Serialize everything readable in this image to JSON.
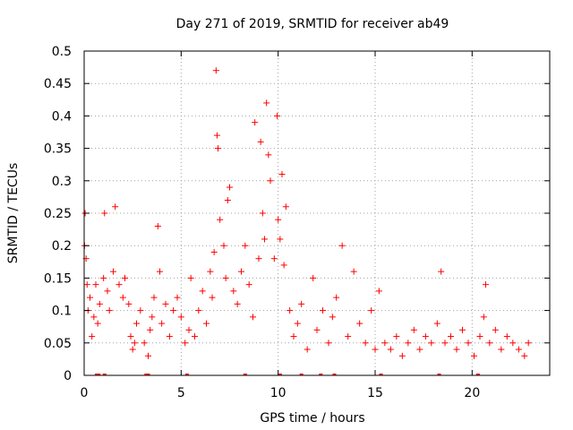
{
  "chart_data": {
    "type": "scatter",
    "title": "Day 271 of 2019, SRMTID for receiver ab49",
    "xlabel": "GPS time / hours",
    "ylabel": "SRMTID / TECUs",
    "xlim": [
      0,
      24
    ],
    "ylim": [
      0,
      0.5
    ],
    "xticks": [
      0,
      5,
      10,
      15,
      20
    ],
    "xtick_labels": [
      "0",
      "5",
      "10",
      "15",
      "20"
    ],
    "yticks": [
      0,
      0.05,
      0.1,
      0.15,
      0.2,
      0.25,
      0.3,
      0.35,
      0.4,
      0.45,
      0.5
    ],
    "ytick_labels": [
      "0",
      "0.05",
      "0.1",
      "0.15",
      "0.2",
      "0.25",
      "0.3",
      "0.35",
      "0.4",
      "0.45",
      "0.5"
    ],
    "grid": true,
    "marker": "+",
    "color": "#ff0000",
    "series": [
      {
        "name": "SRMTID",
        "x": [
          0.02,
          0.05,
          0.1,
          0.15,
          0.2,
          0.3,
          0.4,
          0.5,
          0.6,
          0.7,
          0.8,
          1.0,
          1.05,
          1.2,
          1.3,
          1.5,
          1.6,
          1.8,
          2.0,
          2.1,
          2.3,
          2.4,
          2.5,
          2.6,
          2.7,
          2.9,
          3.1,
          3.3,
          3.4,
          3.5,
          3.6,
          3.8,
          3.9,
          4.0,
          4.2,
          4.4,
          4.6,
          4.8,
          5.0,
          5.2,
          5.4,
          5.5,
          5.7,
          5.9,
          6.1,
          6.3,
          6.5,
          6.6,
          6.7,
          6.8,
          6.85,
          6.9,
          7.0,
          7.2,
          7.3,
          7.4,
          7.5,
          7.7,
          7.9,
          8.1,
          8.3,
          8.5,
          8.7,
          8.8,
          9.0,
          9.1,
          9.2,
          9.3,
          9.4,
          9.5,
          9.6,
          9.8,
          9.95,
          10.0,
          10.1,
          10.2,
          10.3,
          10.4,
          10.6,
          10.8,
          11.0,
          11.2,
          11.5,
          11.8,
          12.0,
          12.3,
          12.6,
          12.8,
          13.0,
          13.3,
          13.6,
          13.9,
          14.2,
          14.5,
          14.8,
          15.0,
          15.2,
          15.5,
          15.8,
          16.1,
          16.4,
          16.7,
          17.0,
          17.3,
          17.6,
          17.9,
          18.2,
          18.4,
          18.6,
          18.9,
          19.2,
          19.5,
          19.8,
          20.1,
          20.4,
          20.6,
          20.7,
          20.9,
          21.2,
          21.5,
          21.8,
          22.1,
          22.4,
          22.7,
          22.9
        ],
        "y": [
          0.2,
          0.25,
          0.18,
          0.14,
          0.1,
          0.12,
          0.06,
          0.09,
          0.14,
          0.08,
          0.11,
          0.15,
          0.25,
          0.13,
          0.1,
          0.16,
          0.26,
          0.14,
          0.12,
          0.15,
          0.11,
          0.06,
          0.04,
          0.05,
          0.08,
          0.1,
          0.05,
          0.03,
          0.07,
          0.09,
          0.12,
          0.23,
          0.16,
          0.08,
          0.11,
          0.06,
          0.1,
          0.12,
          0.09,
          0.05,
          0.07,
          0.15,
          0.06,
          0.1,
          0.13,
          0.08,
          0.16,
          0.12,
          0.19,
          0.47,
          0.37,
          0.35,
          0.24,
          0.2,
          0.15,
          0.27,
          0.29,
          0.13,
          0.11,
          0.16,
          0.2,
          0.14,
          0.09,
          0.39,
          0.18,
          0.36,
          0.25,
          0.21,
          0.42,
          0.34,
          0.3,
          0.18,
          0.4,
          0.24,
          0.21,
          0.31,
          0.17,
          0.26,
          0.1,
          0.06,
          0.08,
          0.11,
          0.04,
          0.15,
          0.07,
          0.1,
          0.05,
          0.09,
          0.12,
          0.2,
          0.06,
          0.16,
          0.08,
          0.05,
          0.1,
          0.04,
          0.13,
          0.05,
          0.04,
          0.06,
          0.03,
          0.05,
          0.07,
          0.04,
          0.06,
          0.05,
          0.08,
          0.16,
          0.05,
          0.06,
          0.04,
          0.07,
          0.05,
          0.03,
          0.06,
          0.09,
          0.14,
          0.05,
          0.07,
          0.04,
          0.06,
          0.05,
          0.04,
          0.03,
          0.05
        ]
      }
    ],
    "baseline_markers_x": [
      0.65,
      0.75,
      1.05,
      3.2,
      3.3,
      5.3,
      8.3,
      10.1,
      11.2,
      12.2,
      12.9,
      15.3,
      18.3,
      20.3
    ]
  }
}
